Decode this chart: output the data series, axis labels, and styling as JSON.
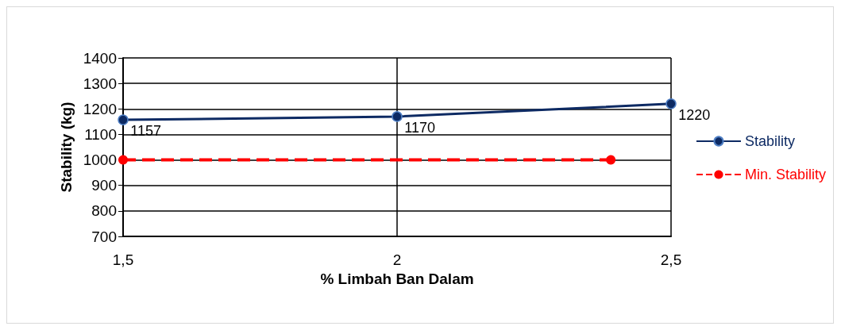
{
  "chart_data": {
    "type": "line",
    "xlabel": "% Limbah Ban Dalam",
    "ylabel": "Stability (kg)",
    "xlim": [
      1.5,
      2.5
    ],
    "xticks": [
      {
        "value": 1.5,
        "label": "1,5"
      },
      2,
      {
        "value": 2.5,
        "label": "2,5"
      }
    ],
    "ylim": [
      700,
      1400
    ],
    "yticks": [
      700,
      800,
      900,
      1000,
      1100,
      1200,
      1300,
      1400
    ],
    "series": [
      {
        "name": "Stability",
        "color": "#0d2a63",
        "x": [
          1.5,
          2,
          2.5
        ],
        "values": [
          1157,
          1170,
          1220
        ],
        "data_labels": true,
        "marker": "circle",
        "line_style": "solid"
      },
      {
        "name": "Min. Stability",
        "color": "#ff0000",
        "x": [
          1.5,
          2.39
        ],
        "values": [
          1000,
          1000
        ],
        "marker": "circle",
        "line_style": "dashed"
      }
    ],
    "grid": true,
    "legend": "right"
  }
}
